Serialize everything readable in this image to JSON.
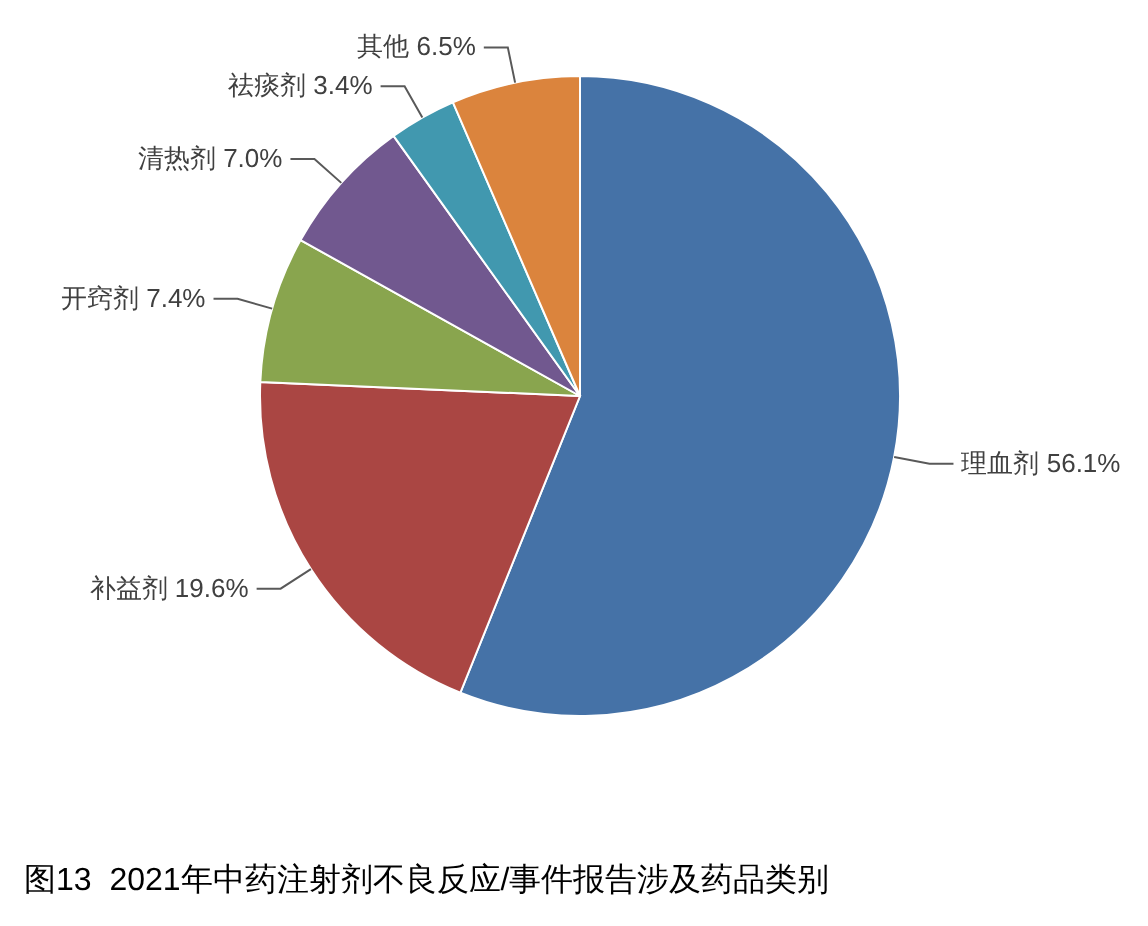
{
  "chart_data": {
    "type": "pie",
    "title": "图13  2021年中药注射剂不良反应/事件报告涉及药品类别",
    "categories": [
      "理血剂",
      "补益剂",
      "开窍剂",
      "清热剂",
      "祛痰剂",
      "其他"
    ],
    "values": [
      56.1,
      19.6,
      7.4,
      7.0,
      3.4,
      6.5
    ],
    "colors": [
      "#4572a7",
      "#aa4643",
      "#89a54e",
      "#71588f",
      "#4198af",
      "#db843d"
    ],
    "value_labels": [
      "56.1%",
      "19.6%",
      "7.4%",
      "7.0%",
      "3.4%",
      "6.5%"
    ]
  }
}
